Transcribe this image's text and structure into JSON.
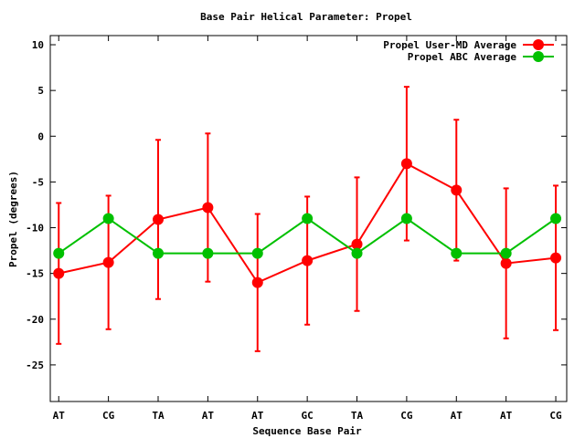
{
  "chart_data": {
    "type": "line",
    "title": "Base Pair Helical Parameter: Propel",
    "xlabel": "Sequence Base Pair",
    "ylabel": "Propel (degrees)",
    "categories": [
      "AT",
      "CG",
      "TA",
      "AT",
      "AT",
      "GC",
      "TA",
      "CG",
      "AT",
      "AT",
      "CG"
    ],
    "xlim": [
      -0.17,
      10.22
    ],
    "ylim": [
      -29,
      11
    ],
    "yticks": [
      10,
      5,
      0,
      -5,
      -10,
      -15,
      -20,
      -25
    ],
    "grid": false,
    "legend_position": "top-right",
    "series": [
      {
        "name": "Propel User-MD Average",
        "color": "#ff0000",
        "values": [
          -15.0,
          -13.8,
          -9.1,
          -7.8,
          -16.0,
          -13.6,
          -11.8,
          -3.0,
          -5.9,
          -13.9,
          -13.3
        ],
        "error": [
          7.7,
          7.3,
          8.7,
          8.1,
          7.5,
          7.0,
          7.3,
          8.4,
          7.7,
          8.2,
          7.9
        ]
      },
      {
        "name": "Propel ABC Average",
        "color": "#00c000",
        "values": [
          -12.8,
          -9.0,
          -12.8,
          -12.8,
          -12.8,
          -9.0,
          -12.8,
          -9.0,
          -12.8,
          -12.8,
          -9.0
        ]
      }
    ]
  }
}
